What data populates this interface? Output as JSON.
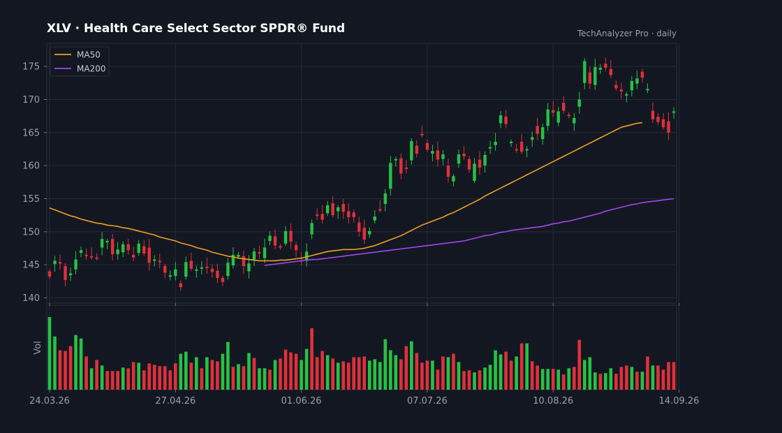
{
  "header": {
    "title": "XLV  ·  Health Care Select Sector SPDR® Fund",
    "subtitle": "TechAnalyzer Pro · daily"
  },
  "colors": {
    "background": "#131722",
    "up": "#26c245",
    "down": "#e0303b",
    "ma50": "#f0a020",
    "ma200": "#a148f0",
    "grid": "#242a38",
    "axis_text": "#9aa0ad"
  },
  "chart_data": [
    {
      "type": "candlestick",
      "title": "XLV  ·  Health Care Select Sector SPDR® Fund",
      "ylim": [
        139.2,
        178.5
      ],
      "yticks": [
        140,
        145,
        150,
        155,
        160,
        165,
        170,
        175
      ],
      "x_tick_labels": [
        "24.03.26",
        "27.04.26",
        "01.06.26",
        "07.07.26",
        "10.08.26",
        "14.09.26"
      ],
      "x_tick_index": [
        0,
        24,
        48,
        72,
        96,
        120
      ],
      "legend": {
        "position": "top-left",
        "entries": [
          "MA50",
          "MA200"
        ]
      },
      "grid": true,
      "candles": [
        [
          144.0,
          143.2
        ],
        [
          145.1,
          145.6
        ],
        [
          145.4,
          145.3
        ],
        [
          144.8,
          142.7
        ],
        [
          143.4,
          143.7
        ],
        [
          144.3,
          145.8
        ],
        [
          146.8,
          147.2
        ],
        [
          146.5,
          146.3
        ],
        [
          146.3,
          146.2
        ],
        [
          146.1,
          146.0
        ],
        [
          147.6,
          148.9
        ],
        [
          148.4,
          148.6
        ],
        [
          148.9,
          146.6
        ],
        [
          146.6,
          147.3
        ],
        [
          146.9,
          148.1
        ],
        [
          148.1,
          147.2
        ],
        [
          146.5,
          146.1
        ],
        [
          146.8,
          148.2
        ],
        [
          147.8,
          146.7
        ],
        [
          147.6,
          145.3
        ],
        [
          145.8,
          145.8
        ],
        [
          145.6,
          145.4
        ],
        [
          144.8,
          143.8
        ],
        [
          143.4,
          143.4
        ],
        [
          143.3,
          144.3
        ],
        [
          142.2,
          141.6
        ],
        [
          143.2,
          145.4
        ],
        [
          145.6,
          144.4
        ],
        [
          144.2,
          144.3
        ],
        [
          144.6,
          144.6
        ],
        [
          144.7,
          144.6
        ],
        [
          144.4,
          143.9
        ],
        [
          144.1,
          143.0
        ],
        [
          143.0,
          142.4
        ],
        [
          143.3,
          145.3
        ],
        [
          144.9,
          146.5
        ],
        [
          146.2,
          146.5
        ],
        [
          146.3,
          144.8
        ],
        [
          144.0,
          145.2
        ],
        [
          145.8,
          147.0
        ],
        [
          146.9,
          146.7
        ],
        [
          146.0,
          147.6
        ],
        [
          148.6,
          149.4
        ],
        [
          149.3,
          147.9
        ],
        [
          147.8,
          147.7
        ],
        [
          148.2,
          150.1
        ],
        [
          150.1,
          148.5
        ],
        [
          148.0,
          147.2
        ],
        [
          146.1,
          145.9
        ],
        [
          145.6,
          147.0
        ],
        [
          149.6,
          151.3
        ],
        [
          152.6,
          152.4
        ],
        [
          152.7,
          151.8
        ],
        [
          152.8,
          154.0
        ],
        [
          154.3,
          152.5
        ],
        [
          153.1,
          153.7
        ],
        [
          154.2,
          153.0
        ],
        [
          153.1,
          152.2
        ],
        [
          152.9,
          152.2
        ],
        [
          151.4,
          150.0
        ],
        [
          150.6,
          148.8
        ],
        [
          149.6,
          150.1
        ],
        [
          151.7,
          152.3
        ],
        [
          153.4,
          153.3
        ],
        [
          154.2,
          155.8
        ],
        [
          156.5,
          160.4
        ],
        [
          160.8,
          161.0
        ],
        [
          161.1,
          158.8
        ],
        [
          159.7,
          159.6
        ],
        [
          160.8,
          163.7
        ],
        [
          163.0,
          161.8
        ],
        [
          164.8,
          164.7
        ],
        [
          163.4,
          162.4
        ],
        [
          161.8,
          162.2
        ],
        [
          162.3,
          160.9
        ],
        [
          161.0,
          161.7
        ],
        [
          160.0,
          158.3
        ],
        [
          157.6,
          158.4
        ],
        [
          160.3,
          161.7
        ],
        [
          161.8,
          161.4
        ],
        [
          161.0,
          159.4
        ],
        [
          157.7,
          160.3
        ],
        [
          160.9,
          159.7
        ],
        [
          160.0,
          161.6
        ],
        [
          162.7,
          162.8
        ],
        [
          163.1,
          163.6
        ],
        [
          166.4,
          167.6
        ],
        [
          167.4,
          166.3
        ],
        [
          163.4,
          163.6
        ],
        [
          162.5,
          162.4
        ],
        [
          163.6,
          162.1
        ],
        [
          162.4,
          162.5
        ],
        [
          163.9,
          164.3
        ],
        [
          166.0,
          164.8
        ],
        [
          164.0,
          165.8
        ],
        [
          166.0,
          168.5
        ],
        [
          168.4,
          168.0
        ],
        [
          166.5,
          168.2
        ],
        [
          169.5,
          168.3
        ],
        [
          167.7,
          167.5
        ],
        [
          166.4,
          167.2
        ],
        [
          168.9,
          170.0
        ],
        [
          172.5,
          175.8
        ],
        [
          174.1,
          172.4
        ],
        [
          172.2,
          174.9
        ],
        [
          174.5,
          174.8
        ],
        [
          175.4,
          174.8
        ],
        [
          174.6,
          173.7
        ],
        [
          172.2,
          171.7
        ],
        [
          171.5,
          171.2
        ],
        [
          170.6,
          170.8
        ],
        [
          171.4,
          172.8
        ],
        [
          172.4,
          173.2
        ],
        [
          174.2,
          173.3
        ],
        [
          171.6,
          171.6
        ],
        [
          168.3,
          167.0
        ],
        [
          167.4,
          166.6
        ],
        [
          167.0,
          165.8
        ],
        [
          166.7,
          165.0
        ],
        [
          168.1,
          168.2
        ]
      ],
      "volume_colors": [
        "up",
        "up",
        "down",
        "down",
        "down",
        "up",
        "up",
        "down",
        "up",
        "down",
        "up",
        "down",
        "down",
        "down",
        "up",
        "down",
        "down",
        "up",
        "down",
        "down",
        "down",
        "down",
        "down",
        "down",
        "down",
        "up",
        "up",
        "down",
        "up",
        "down",
        "up",
        "down",
        "down",
        "up",
        "up",
        "down",
        "up",
        "down",
        "up",
        "down",
        "up",
        "up",
        "down",
        "up",
        "down",
        "down",
        "down",
        "down",
        "up",
        "up",
        "down",
        "down",
        "down",
        "up",
        "down",
        "up",
        "down",
        "down",
        "down",
        "down",
        "down",
        "up",
        "up",
        "up",
        "up",
        "up",
        "up",
        "down",
        "down",
        "up",
        "down",
        "down",
        "down",
        "up",
        "down",
        "down",
        "up",
        "down",
        "up",
        "down",
        "down",
        "up",
        "down",
        "up",
        "up",
        "up",
        "up",
        "down",
        "down",
        "up",
        "down",
        "up",
        "down",
        "down",
        "up",
        "up",
        "down",
        "up",
        "down",
        "up",
        "down",
        "down",
        "up",
        "up",
        "up",
        "down",
        "up",
        "up",
        "down",
        "down",
        "down",
        "up",
        "down",
        "up",
        "down",
        "up",
        "down",
        "down",
        "down",
        "down"
      ],
      "volume": [
        105,
        77,
        57,
        56,
        63,
        79,
        74,
        48,
        31,
        43,
        35,
        27,
        27,
        27,
        32,
        31,
        40,
        39,
        28,
        38,
        36,
        34,
        34,
        28,
        38,
        52,
        55,
        39,
        47,
        31,
        47,
        43,
        41,
        52,
        69,
        33,
        37,
        34,
        53,
        46,
        31,
        31,
        29,
        43,
        45,
        58,
        54,
        52,
        43,
        59,
        89,
        47,
        56,
        50,
        45,
        39,
        41,
        39,
        47,
        47,
        48,
        42,
        44,
        40,
        73,
        57,
        50,
        44,
        63,
        70,
        53,
        39,
        42,
        42,
        29,
        48,
        47,
        52,
        40,
        27,
        28,
        25,
        28,
        32,
        36,
        57,
        51,
        55,
        42,
        48,
        67,
        67,
        41,
        35,
        30,
        30,
        30,
        29,
        22,
        31,
        33,
        72,
        43,
        47,
        25,
        23,
        24,
        31,
        23,
        33,
        35,
        33,
        26,
        26,
        48,
        35,
        35,
        29,
        40,
        40
      ],
      "ma50": [
        153.6,
        153.3,
        153.0,
        152.7,
        152.4,
        152.2,
        151.9,
        151.7,
        151.5,
        151.3,
        151.2,
        151.0,
        150.9,
        150.8,
        150.6,
        150.5,
        150.3,
        150.1,
        149.9,
        149.7,
        149.5,
        149.2,
        149.0,
        148.8,
        148.6,
        148.3,
        148.1,
        147.9,
        147.6,
        147.4,
        147.2,
        146.9,
        146.7,
        146.5,
        146.3,
        146.2,
        146.0,
        145.9,
        145.8,
        145.7,
        145.6,
        145.6,
        145.6,
        145.6,
        145.7,
        145.7,
        145.8,
        145.9,
        146.0,
        146.2,
        146.4,
        146.6,
        146.8,
        147.0,
        147.1,
        147.2,
        147.3,
        147.3,
        147.3,
        147.4,
        147.5,
        147.7,
        147.9,
        148.2,
        148.5,
        148.8,
        149.1,
        149.4,
        149.8,
        150.2,
        150.6,
        151.0,
        151.3,
        151.6,
        151.9,
        152.2,
        152.6,
        152.9,
        153.3,
        153.7,
        154.1,
        154.5,
        154.9,
        155.4,
        155.8,
        156.2,
        156.6,
        157.0,
        157.4,
        157.8,
        158.2,
        158.6,
        159.0,
        159.4,
        159.8,
        160.2,
        160.6,
        161.0,
        161.4,
        161.8,
        162.2,
        162.6,
        163.0,
        163.4,
        163.8,
        164.2,
        164.6,
        165.0,
        165.4,
        165.8,
        166.0,
        166.2,
        166.4,
        166.5
      ],
      "ma200": [
        144.9,
        145.0,
        145.1,
        145.2,
        145.3,
        145.4,
        145.5,
        145.6,
        145.7,
        145.8,
        145.8,
        145.9,
        146.0,
        146.1,
        146.2,
        146.3,
        146.4,
        146.5,
        146.6,
        146.7,
        146.8,
        146.9,
        147.0,
        147.1,
        147.2,
        147.3,
        147.4,
        147.5,
        147.6,
        147.7,
        147.8,
        147.9,
        148.0,
        148.1,
        148.2,
        148.3,
        148.4,
        148.5,
        148.6,
        148.8,
        149.0,
        149.2,
        149.4,
        149.5,
        149.7,
        149.9,
        150.0,
        150.2,
        150.3,
        150.4,
        150.5,
        150.6,
        150.7,
        150.8,
        151.0,
        151.2,
        151.3,
        151.5,
        151.6,
        151.8,
        152.0,
        152.2,
        152.4,
        152.6,
        152.8,
        153.1,
        153.3,
        153.5,
        153.7,
        153.9,
        154.1,
        154.2,
        154.4,
        154.5,
        154.6,
        154.7,
        154.8,
        154.9,
        155.0
      ],
      "ma200_start_index": 41
    }
  ],
  "panels": {
    "volume_axis_label": "Vol"
  }
}
